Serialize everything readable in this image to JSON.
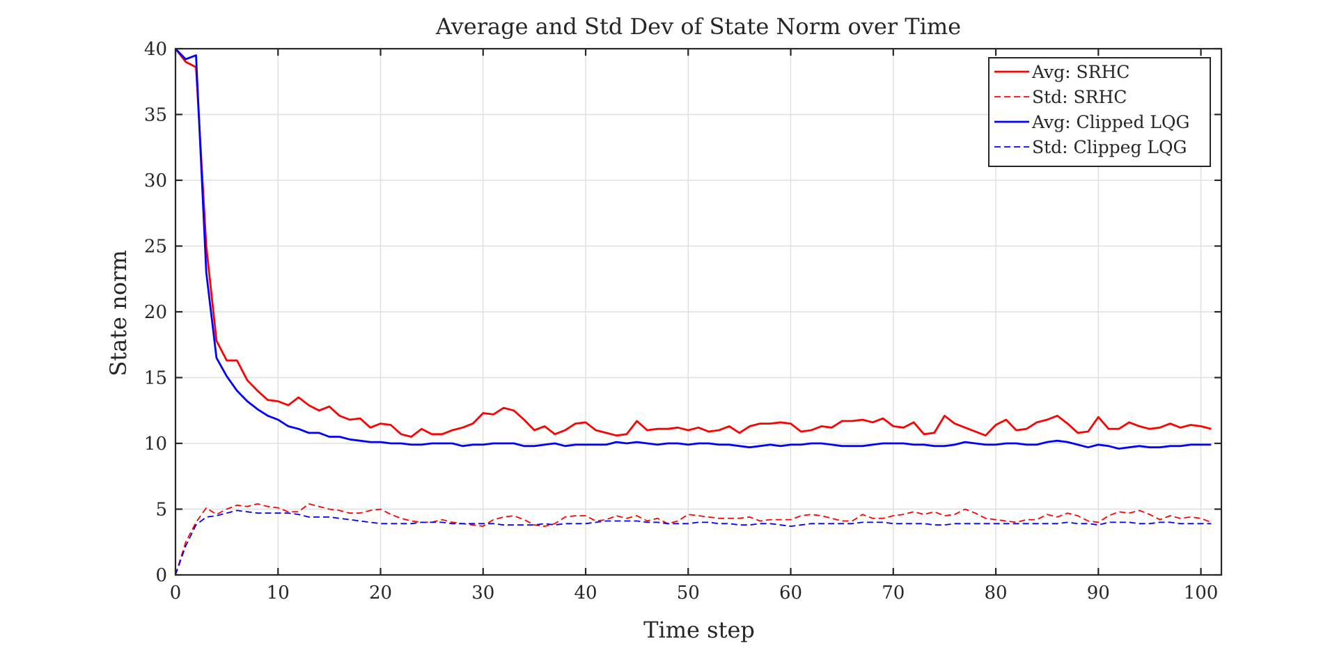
{
  "chart_data": {
    "type": "line",
    "title": "Average and Std Dev of State Norm over Time",
    "xlabel": "Time step",
    "ylabel": "State norm",
    "xlim": [
      0,
      102
    ],
    "ylim": [
      0,
      40
    ],
    "xticks": [
      0,
      10,
      20,
      30,
      40,
      50,
      60,
      70,
      80,
      90,
      100
    ],
    "yticks": [
      0,
      5,
      10,
      15,
      20,
      25,
      30,
      35,
      40
    ],
    "grid": true,
    "legend_position": "top-right",
    "x_start": 0,
    "x_step": 1,
    "series": [
      {
        "name": "Avg: SRHC",
        "color": "#ff0000",
        "style": "solid",
        "values": [
          40.0,
          39.0,
          38.6,
          25.0,
          17.8,
          16.3,
          16.3,
          14.8,
          14.0,
          13.3,
          13.2,
          12.9,
          13.5,
          12.9,
          12.5,
          12.8,
          12.1,
          11.8,
          11.9,
          11.2,
          11.5,
          11.4,
          10.7,
          10.5,
          11.1,
          10.7,
          10.7,
          11.0,
          11.2,
          11.5,
          12.3,
          12.2,
          12.7,
          12.5,
          11.8,
          11.0,
          11.3,
          10.7,
          11.0,
          11.5,
          11.6,
          11.0,
          10.8,
          10.6,
          10.7,
          11.7,
          11.0,
          11.1,
          11.1,
          11.2,
          11.0,
          11.2,
          10.9,
          11.0,
          11.3,
          10.8,
          11.3,
          11.5,
          11.5,
          11.6,
          11.5,
          10.9,
          11.0,
          11.3,
          11.2,
          11.7,
          11.7,
          11.8,
          11.6,
          11.9,
          11.3,
          11.2,
          11.6,
          10.7,
          10.8,
          12.1,
          11.5,
          11.2,
          10.9,
          10.6,
          11.4,
          11.8,
          11.0,
          11.1,
          11.6,
          11.8,
          12.1,
          11.5,
          10.8,
          10.9,
          12.0,
          11.1,
          11.1,
          11.6,
          11.3,
          11.1,
          11.2,
          11.5,
          11.2,
          11.4,
          11.3,
          11.1
        ]
      },
      {
        "name": "Std: SRHC",
        "color": "#ff0000",
        "style": "dashed",
        "values": [
          0.0,
          2.5,
          4.0,
          5.1,
          4.6,
          5.0,
          5.3,
          5.2,
          5.4,
          5.2,
          5.1,
          4.8,
          4.8,
          5.4,
          5.2,
          5.0,
          4.9,
          4.7,
          4.7,
          4.9,
          5.0,
          4.6,
          4.3,
          4.1,
          4.0,
          4.0,
          4.2,
          4.0,
          3.9,
          3.8,
          3.7,
          4.2,
          4.4,
          4.5,
          4.2,
          3.8,
          3.7,
          3.9,
          4.4,
          4.5,
          4.5,
          4.1,
          4.2,
          4.5,
          4.3,
          4.5,
          4.1,
          4.3,
          3.9,
          4.1,
          4.6,
          4.5,
          4.4,
          4.3,
          4.3,
          4.3,
          4.4,
          4.1,
          4.2,
          4.2,
          4.2,
          4.5,
          4.6,
          4.5,
          4.3,
          4.1,
          4.1,
          4.6,
          4.3,
          4.3,
          4.5,
          4.6,
          4.8,
          4.6,
          4.8,
          4.5,
          4.6,
          5.0,
          4.7,
          4.3,
          4.2,
          4.1,
          4.0,
          4.2,
          4.2,
          4.6,
          4.4,
          4.7,
          4.5,
          4.1,
          4.0,
          4.5,
          4.8,
          4.7,
          4.9,
          4.6,
          4.2,
          4.5,
          4.3,
          4.4,
          4.3,
          4.0
        ]
      },
      {
        "name": "Avg: Clipped LQG",
        "color": "#0000ff",
        "style": "solid",
        "values": [
          40.0,
          39.2,
          39.5,
          23.0,
          16.5,
          15.1,
          14.0,
          13.2,
          12.6,
          12.1,
          11.8,
          11.3,
          11.1,
          10.8,
          10.8,
          10.5,
          10.5,
          10.3,
          10.2,
          10.1,
          10.1,
          10.0,
          10.0,
          9.9,
          9.9,
          10.0,
          10.0,
          10.0,
          9.8,
          9.9,
          9.9,
          10.0,
          10.0,
          10.0,
          9.8,
          9.8,
          9.9,
          10.0,
          9.8,
          9.9,
          9.9,
          9.9,
          9.9,
          10.1,
          10.0,
          10.1,
          10.0,
          9.9,
          10.0,
          10.0,
          9.9,
          10.0,
          10.0,
          9.9,
          9.9,
          9.8,
          9.7,
          9.8,
          9.9,
          9.8,
          9.9,
          9.9,
          10.0,
          10.0,
          9.9,
          9.8,
          9.8,
          9.8,
          9.9,
          10.0,
          10.0,
          10.0,
          9.9,
          9.9,
          9.8,
          9.8,
          9.9,
          10.1,
          10.0,
          9.9,
          9.9,
          10.0,
          10.0,
          9.9,
          9.9,
          10.1,
          10.2,
          10.1,
          9.9,
          9.7,
          9.9,
          9.8,
          9.6,
          9.7,
          9.8,
          9.7,
          9.7,
          9.8,
          9.8,
          9.9,
          9.9,
          9.9
        ]
      },
      {
        "name": "Std: Clippeg LQG",
        "color": "#0000ff",
        "style": "dashed",
        "values": [
          0.0,
          2.2,
          3.8,
          4.4,
          4.5,
          4.7,
          4.9,
          4.8,
          4.7,
          4.7,
          4.7,
          4.7,
          4.6,
          4.4,
          4.4,
          4.4,
          4.3,
          4.2,
          4.1,
          4.0,
          3.9,
          3.9,
          3.9,
          3.9,
          4.0,
          4.0,
          4.0,
          3.9,
          3.9,
          3.9,
          3.9,
          3.9,
          3.8,
          3.8,
          3.8,
          3.8,
          3.9,
          3.8,
          3.9,
          3.9,
          3.9,
          4.0,
          4.1,
          4.1,
          4.1,
          4.1,
          4.0,
          4.0,
          3.9,
          3.9,
          3.9,
          4.0,
          4.0,
          3.9,
          3.9,
          3.8,
          3.8,
          3.9,
          3.9,
          3.8,
          3.7,
          3.8,
          3.9,
          3.9,
          3.9,
          3.9,
          3.9,
          4.0,
          4.0,
          4.0,
          3.9,
          3.9,
          3.9,
          3.9,
          3.8,
          3.8,
          3.9,
          3.9,
          3.9,
          3.9,
          3.9,
          3.9,
          3.9,
          3.9,
          3.9,
          3.9,
          3.9,
          4.0,
          3.9,
          3.9,
          3.8,
          4.0,
          4.0,
          4.0,
          3.9,
          3.9,
          4.0,
          4.0,
          3.9,
          3.9,
          3.9,
          3.9
        ]
      }
    ]
  }
}
